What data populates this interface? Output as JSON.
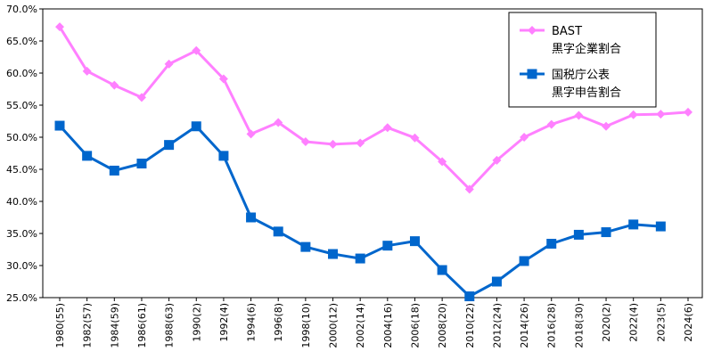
{
  "chart_data": {
    "type": "line",
    "categories": [
      "1980(55)",
      "1982(57)",
      "1984(59)",
      "1986(61)",
      "1988(63)",
      "1990(2)",
      "1992(4)",
      "1994(6)",
      "1996(8)",
      "1998(10)",
      "2000(12)",
      "2002(14)",
      "2004(16)",
      "2006(18)",
      "2008(20)",
      "2010(22)",
      "2012(24)",
      "2014(26)",
      "2016(28)",
      "2018(30)",
      "2020(2)",
      "2022(4)",
      "2023(5)",
      "2024(6)"
    ],
    "y_ticks": [
      "25.0%",
      "30.0%",
      "35.0%",
      "40.0%",
      "45.0%",
      "50.0%",
      "55.0%",
      "60.0%",
      "65.0%",
      "70.0%"
    ],
    "ylim": [
      25,
      70
    ],
    "grid": false,
    "legend_position": "top-right",
    "series": [
      {
        "name": "BAST\n黒字企業割合",
        "name_lines": [
          "BAST",
          "黒字企業割合"
        ],
        "color": "#ff80ff",
        "marker": "diamond",
        "values": [
          67.2,
          60.3,
          58.1,
          56.2,
          61.4,
          63.5,
          59.1,
          50.5,
          52.3,
          49.3,
          48.9,
          49.1,
          51.5,
          49.9,
          46.2,
          41.9,
          46.4,
          50.0,
          52.0,
          53.4,
          51.7,
          53.5,
          53.6,
          53.9
        ]
      },
      {
        "name": "国税庁公表\n黒字申告割合",
        "name_lines": [
          "国税庁公表",
          "黒字申告割合"
        ],
        "color": "#0066cc",
        "marker": "square",
        "values": [
          51.8,
          47.1,
          44.8,
          45.9,
          48.8,
          51.7,
          47.1,
          37.5,
          35.3,
          32.9,
          31.8,
          31.1,
          33.1,
          33.8,
          29.3,
          25.2,
          27.5,
          30.7,
          33.4,
          34.8,
          35.2,
          36.4,
          36.1,
          null
        ]
      }
    ]
  }
}
